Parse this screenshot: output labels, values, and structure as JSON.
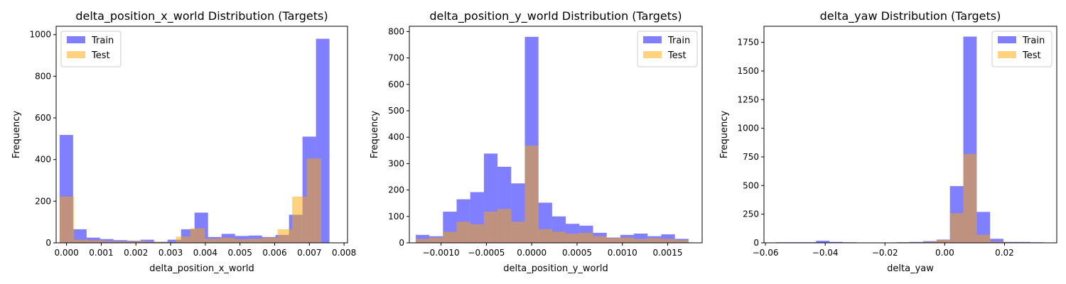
{
  "chart_data": [
    {
      "type": "bar",
      "title": "delta_position_x_world Distribution (Targets)",
      "xlabel": "delta_position_x_world",
      "ylabel": "Frequency",
      "xlim": [
        -0.0003,
        0.0081
      ],
      "ylim": [
        0,
        1040
      ],
      "xticks": [
        0.0,
        0.001,
        0.002,
        0.003,
        0.004,
        0.005,
        0.006,
        0.007,
        0.008
      ],
      "xtick_labels": [
        "0.000",
        "0.001",
        "0.002",
        "0.003",
        "0.004",
        "0.005",
        "0.006",
        "0.007",
        "0.008"
      ],
      "yticks": [
        0,
        200,
        400,
        600,
        800,
        1000
      ],
      "ytick_labels": [
        "0",
        "200",
        "400",
        "600",
        "800",
        "1000"
      ],
      "legend": "top-left",
      "series": [
        {
          "name": "Train",
          "color": "#0000ff",
          "opacity": 0.5,
          "bin_start": -0.0002,
          "bin_width": 0.000389,
          "values": [
            518,
            65,
            25,
            18,
            13,
            10,
            15,
            5,
            15,
            65,
            145,
            28,
            43,
            33,
            35,
            28,
            38,
            135,
            510,
            980
          ]
        },
        {
          "name": "Test",
          "color": "#ffa500",
          "opacity": 0.5,
          "bin_start": -0.0002,
          "bin_width": 0.000419,
          "values": [
            222,
            15,
            12,
            8,
            7,
            8,
            5,
            3,
            30,
            70,
            20,
            25,
            18,
            20,
            25,
            65,
            222,
            405
          ]
        }
      ]
    },
    {
      "type": "bar",
      "title": "delta_position_y_world Distribution (Targets)",
      "xlabel": "delta_position_y_world",
      "ylabel": "Frequency",
      "xlim": [
        -0.00135,
        0.00188
      ],
      "ylim": [
        0,
        820
      ],
      "xticks": [
        -0.001,
        -0.0005,
        0.0,
        0.0005,
        0.001,
        0.0015
      ],
      "xtick_labels": [
        "−0.0010",
        "−0.0005",
        "0.0000",
        "0.0005",
        "0.0010",
        "0.0015"
      ],
      "yticks": [
        0,
        100,
        200,
        300,
        400,
        500,
        600,
        700,
        800
      ],
      "ytick_labels": [
        "0",
        "100",
        "200",
        "300",
        "400",
        "500",
        "600",
        "700",
        "800"
      ],
      "legend": "top-right",
      "series": [
        {
          "name": "Train",
          "color": "#0000ff",
          "opacity": 0.5,
          "bin_start": -0.00128,
          "bin_width": 0.0001505,
          "values": [
            30,
            25,
            118,
            165,
            192,
            338,
            288,
            225,
            780,
            152,
            100,
            72,
            65,
            38,
            20,
            30,
            35,
            25,
            32,
            15
          ]
        },
        {
          "name": "Test",
          "color": "#ffa500",
          "opacity": 0.5,
          "bin_start": -0.00128,
          "bin_width": 0.0001505,
          "values": [
            15,
            20,
            42,
            80,
            70,
            118,
            128,
            80,
            368,
            52,
            42,
            35,
            38,
            25,
            18,
            20,
            15,
            18,
            15,
            10
          ]
        }
      ]
    },
    {
      "type": "bar",
      "title": "delta_yaw Distribution (Targets)",
      "xlabel": "delta_yaw",
      "ylabel": "Frequency",
      "xlim": [
        -0.0605,
        0.0375
      ],
      "ylim": [
        0,
        1890
      ],
      "xticks": [
        -0.06,
        -0.04,
        -0.02,
        0.0,
        0.02
      ],
      "xtick_labels": [
        "−0.06",
        "−0.04",
        "0.00",
        "0.02"
      ],
      "xtick_labels_full": [
        "−0.06",
        "−0.04",
        "−0.02",
        "0.00",
        "0.02"
      ],
      "yticks": [
        0,
        250,
        500,
        750,
        1000,
        1250,
        1500,
        1750
      ],
      "ytick_labels": [
        "0",
        "250",
        "500",
        "750",
        "1000",
        "1250",
        "1500",
        "1750"
      ],
      "legend": "top-right",
      "series": [
        {
          "name": "Train",
          "color": "#0000ff",
          "opacity": 0.5,
          "bin_start": -0.0565,
          "bin_width": 0.00448,
          "values": [
            5,
            5,
            5,
            18,
            8,
            5,
            3,
            3,
            3,
            5,
            8,
            15,
            28,
            495,
            1800,
            270,
            35,
            8,
            8,
            5
          ]
        },
        {
          "name": "Test",
          "color": "#ffa500",
          "opacity": 0.5,
          "bin_start": -0.0565,
          "bin_width": 0.00448,
          "values": [
            3,
            3,
            3,
            3,
            3,
            3,
            3,
            3,
            3,
            5,
            5,
            10,
            25,
            258,
            775,
            70,
            10,
            5,
            5,
            3
          ]
        }
      ]
    }
  ]
}
